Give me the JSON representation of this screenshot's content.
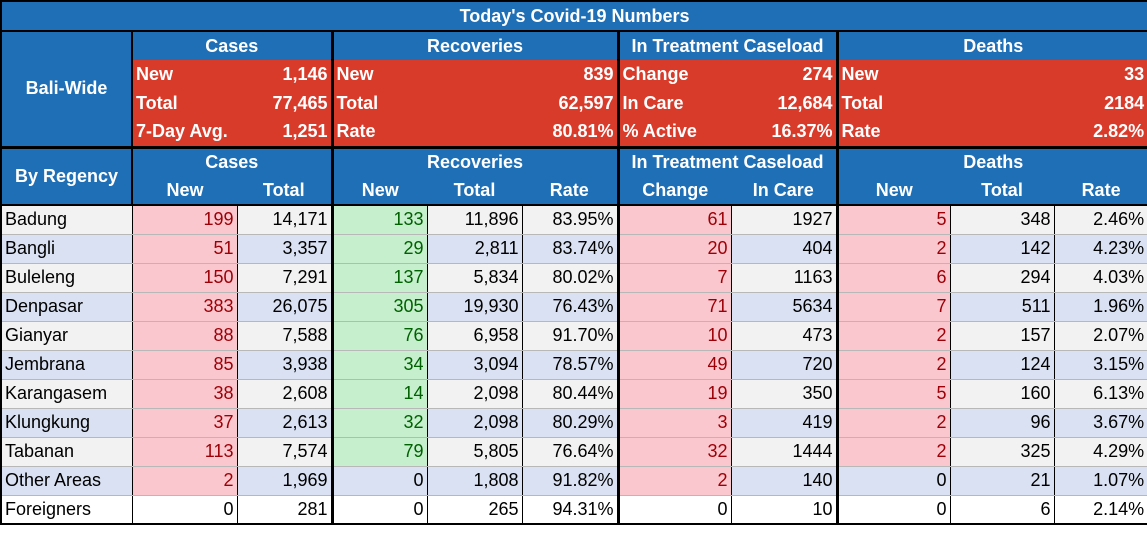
{
  "title": "Today's Covid-19 Numbers",
  "colors": {
    "header_blue": "#1f6fb7",
    "summary_red": "#d93b2b",
    "cases_pink": "#fbc7ce",
    "recov_green": "#c6efce"
  },
  "groups": {
    "cases": "Cases",
    "recoveries": "Recoveries",
    "treatment": "In Treatment Caseload",
    "deaths": "Deaths"
  },
  "bali": {
    "label": "Bali-Wide",
    "rows": [
      [
        "New",
        "1,146",
        "New",
        "839",
        "Change",
        "274",
        "New",
        "33"
      ],
      [
        "Total",
        "77,465",
        "Total",
        "62,597",
        "In Care",
        "12,684",
        "Total",
        "2184"
      ],
      [
        "7-Day Avg.",
        "1,251",
        "Rate",
        "80.81%",
        "% Active",
        "16.37%",
        "Rate",
        "2.82%"
      ]
    ]
  },
  "regency": {
    "label": "By Regency",
    "subheaders": [
      "New",
      "Total",
      "New",
      "Total",
      "Rate",
      "Change",
      "In Care",
      "New",
      "Total",
      "Rate"
    ],
    "rows": [
      [
        "Badung",
        "199",
        "14,171",
        "133",
        "11,896",
        "83.95%",
        "61",
        "1927",
        "5",
        "348",
        "2.46%"
      ],
      [
        "Bangli",
        "51",
        "3,357",
        "29",
        "2,811",
        "83.74%",
        "20",
        "404",
        "2",
        "142",
        "4.23%"
      ],
      [
        "Buleleng",
        "150",
        "7,291",
        "137",
        "5,834",
        "80.02%",
        "7",
        "1163",
        "6",
        "294",
        "4.03%"
      ],
      [
        "Denpasar",
        "383",
        "26,075",
        "305",
        "19,930",
        "76.43%",
        "71",
        "5634",
        "7",
        "511",
        "1.96%"
      ],
      [
        "Gianyar",
        "88",
        "7,588",
        "76",
        "6,958",
        "91.70%",
        "10",
        "473",
        "2",
        "157",
        "2.07%"
      ],
      [
        "Jembrana",
        "85",
        "3,938",
        "34",
        "3,094",
        "78.57%",
        "49",
        "720",
        "2",
        "124",
        "3.15%"
      ],
      [
        "Karangasem",
        "38",
        "2,608",
        "14",
        "2,098",
        "80.44%",
        "19",
        "350",
        "5",
        "160",
        "6.13%"
      ],
      [
        "Klungkung",
        "37",
        "2,613",
        "32",
        "2,098",
        "80.29%",
        "3",
        "419",
        "2",
        "96",
        "3.67%"
      ],
      [
        "Tabanan",
        "113",
        "7,574",
        "79",
        "5,805",
        "76.64%",
        "32",
        "1444",
        "2",
        "325",
        "4.29%"
      ],
      [
        "Other Areas",
        "2",
        "1,969",
        "0",
        "1,808",
        "91.82%",
        "2",
        "140",
        "0",
        "21",
        "1.07%"
      ],
      [
        "Foreigners",
        "0",
        "281",
        "0",
        "265",
        "94.31%",
        "0",
        "10",
        "0",
        "6",
        "2.14%"
      ]
    ]
  }
}
